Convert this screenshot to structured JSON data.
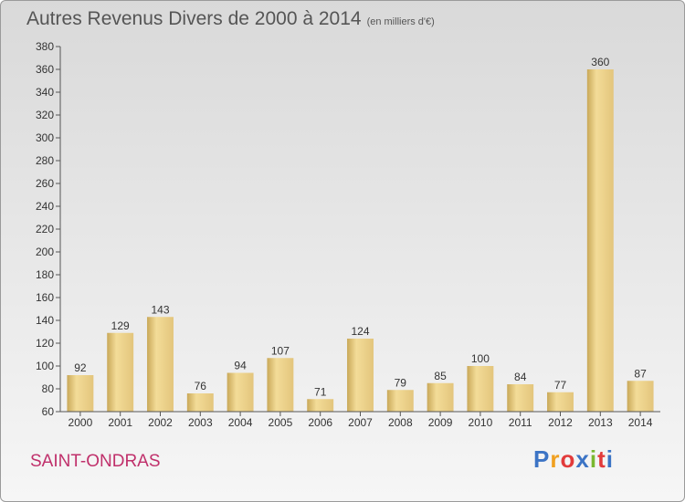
{
  "header": {
    "title": "Autres Revenus Divers de 2000 à 2014",
    "subtitle": "(en milliers d'€)"
  },
  "footer": {
    "place": "SAINT-ONDRAS",
    "brand": {
      "text": "Proxiti",
      "letters": [
        "P",
        "r",
        "o",
        "x",
        "i",
        "t",
        "i"
      ]
    }
  },
  "colors": {
    "bar_light": "#f3dc98",
    "bar_dark": "#c9a858",
    "place": "#c0306b",
    "logo": [
      "#3c74c5",
      "#f0a020",
      "#e23b3b",
      "#3c74c5",
      "#7ab830",
      "#e23b3b",
      "#3c74c5"
    ]
  },
  "chart_data": {
    "type": "bar",
    "title": "Autres Revenus Divers de 2000 à 2014",
    "subtitle": "(en milliers d'€)",
    "categories": [
      "2000",
      "2001",
      "2002",
      "2003",
      "2004",
      "2005",
      "2006",
      "2007",
      "2008",
      "2009",
      "2010",
      "2011",
      "2012",
      "2013",
      "2014"
    ],
    "values": [
      92,
      129,
      143,
      76,
      94,
      107,
      71,
      124,
      79,
      85,
      100,
      84,
      77,
      360,
      87
    ],
    "ylim": [
      60,
      380
    ],
    "yticks": [
      60,
      80,
      100,
      120,
      140,
      160,
      180,
      200,
      220,
      240,
      260,
      280,
      300,
      320,
      340,
      360,
      380
    ],
    "grid": false,
    "data_labels": true
  }
}
